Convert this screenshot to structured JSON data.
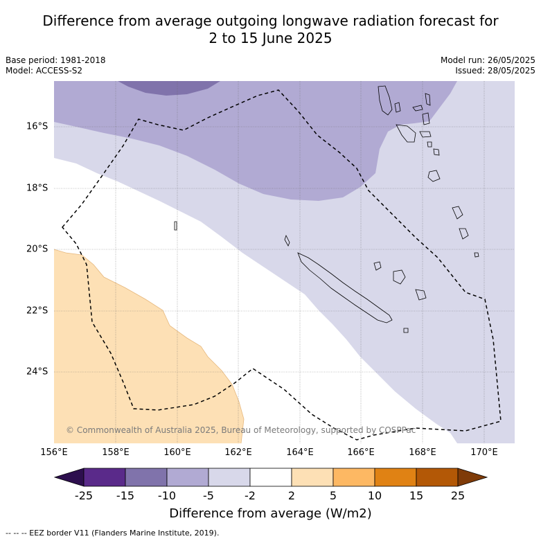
{
  "title_line1": "Difference from average outgoing longwave radiation forecast for",
  "title_line2": "2 to 15 June 2025",
  "base_period": "Base period: 1981-2018",
  "model": "Model: ACCESS-S2",
  "model_run": "Model run: 26/05/2025",
  "issued": "Issued: 28/05/2025",
  "copyright": "© Commonwealth of Australia 2025, Bureau of Meteorology, supported by COSPPac",
  "x_ticks": [
    "156°E",
    "158°E",
    "160°E",
    "162°E",
    "164°E",
    "166°E",
    "168°E",
    "170°E"
  ],
  "y_ticks": [
    "16°S",
    "18°S",
    "20°S",
    "22°S",
    "24°S"
  ],
  "colorbar": {
    "ticks": [
      "-25",
      "-15",
      "-10",
      "-5",
      "-2",
      "2",
      "5",
      "10",
      "15",
      "25"
    ],
    "label": "Difference from average (W/m2)",
    "colors": [
      "#2d0f4e",
      "#5a2a8a",
      "#8073ab",
      "#b1aad3",
      "#d8d8ea",
      "#ffffff",
      "#fde0b5",
      "#fdb863",
      "#e08214",
      "#b35806",
      "#7f3b08"
    ]
  },
  "footer": "-- -- -- EEZ border V11 (Flanders Marine Institute, 2019).",
  "map": {
    "lon_range": [
      156,
      171
    ],
    "lat_range": [
      -26.5,
      -14.6
    ]
  }
}
